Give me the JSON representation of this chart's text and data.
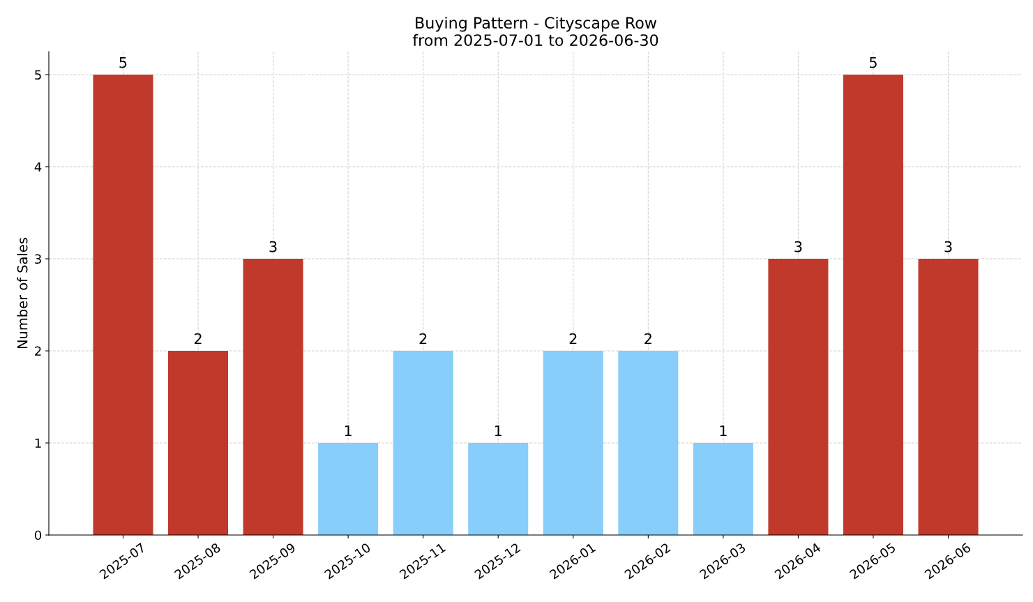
{
  "chart_data": {
    "type": "bar",
    "title": "Buying Pattern - Cityscape Row\nfrom 2025-07-01 to 2026-06-30",
    "ylabel": "Number of Sales",
    "categories": [
      "2025-07",
      "2025-08",
      "2025-09",
      "2025-10",
      "2025-11",
      "2025-12",
      "2026-01",
      "2026-02",
      "2026-03",
      "2026-04",
      "2026-05",
      "2026-06"
    ],
    "values": [
      5,
      2,
      3,
      1,
      2,
      1,
      2,
      2,
      1,
      3,
      5,
      3
    ],
    "colors": [
      "#c0392b",
      "#c0392b",
      "#c0392b",
      "#87cefa",
      "#87cefa",
      "#87cefa",
      "#87cefa",
      "#87cefa",
      "#87cefa",
      "#c0392b",
      "#c0392b",
      "#c0392b"
    ],
    "ylim": [
      0,
      5.25
    ],
    "yticks": [
      0,
      1,
      2,
      3,
      4,
      5
    ],
    "grid": true,
    "data_labels": true
  }
}
